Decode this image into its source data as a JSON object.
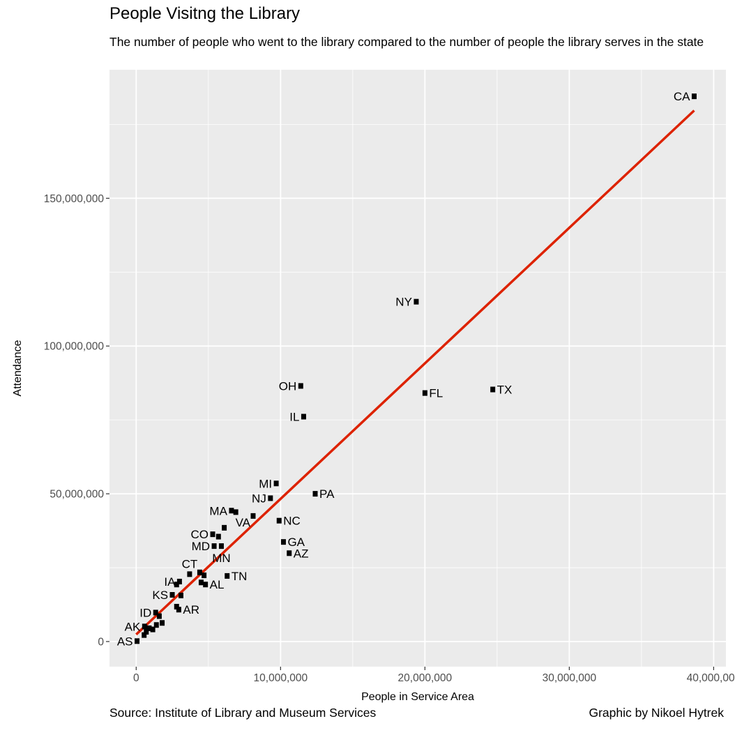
{
  "title": "People Visitng the Library",
  "subtitle": "The number of people who went to the library compared to the number of people the library serves  in the state",
  "caption_left": "Source: Institute of Library and Museum Services",
  "caption_right": "Graphic by Nikoel Hytrek",
  "colors": {
    "panel": "#ebebeb",
    "grid": "#ffffff",
    "point": "#000000",
    "fit_line": "#dd2200"
  },
  "chart_data": {
    "type": "scatter",
    "xlabel": "People in Service Area",
    "ylabel": "Attendance",
    "xlim": [
      -1850000,
      40850000
    ],
    "ylim": [
      -8500000,
      193500000
    ],
    "x_ticks": [
      0,
      10000000,
      20000000,
      30000000,
      40000000
    ],
    "x_tick_labels": [
      "0",
      "10,000,000",
      "20,000,000",
      "30,000,000",
      "40,000,000"
    ],
    "y_ticks": [
      0,
      50000000,
      100000000,
      150000000
    ],
    "y_tick_labels": [
      "0",
      "50,000,000",
      "100,000,000",
      "150,000,000"
    ],
    "grid": true,
    "points": [
      {
        "x": 38650000,
        "y": 184500000,
        "label": "CA",
        "label_side": "left"
      },
      {
        "x": 19400000,
        "y": 115000000,
        "label": "NY",
        "label_side": "left"
      },
      {
        "x": 24700000,
        "y": 85300000,
        "label": "TX",
        "label_side": "right"
      },
      {
        "x": 20000000,
        "y": 84100000,
        "label": "FL",
        "label_side": "right"
      },
      {
        "x": 11400000,
        "y": 86500000,
        "label": "OH",
        "label_side": "left"
      },
      {
        "x": 11600000,
        "y": 76100000,
        "label": "IL",
        "label_side": "left"
      },
      {
        "x": 12400000,
        "y": 50000000,
        "label": "PA",
        "label_side": "right"
      },
      {
        "x": 9700000,
        "y": 53500000,
        "label": "MI",
        "label_side": "left"
      },
      {
        "x": 9300000,
        "y": 48500000,
        "label": "NJ",
        "label_side": "left"
      },
      {
        "x": 9900000,
        "y": 40900000,
        "label": "NC",
        "label_side": "right"
      },
      {
        "x": 10200000,
        "y": 33700000,
        "label": "GA",
        "label_side": "right"
      },
      {
        "x": 10600000,
        "y": 29900000,
        "label": "AZ",
        "label_side": "right"
      },
      {
        "x": 8100000,
        "y": 42500000,
        "label": "VA",
        "label_side": "below-left"
      },
      {
        "x": 6600000,
        "y": 44300000,
        "label": "MA",
        "label_side": "left"
      },
      {
        "x": 6900000,
        "y": 43800000,
        "label": null
      },
      {
        "x": 6100000,
        "y": 38500000,
        "label": null
      },
      {
        "x": 5300000,
        "y": 36300000,
        "label": "CO",
        "label_side": "left"
      },
      {
        "x": 5700000,
        "y": 35500000,
        "label": null
      },
      {
        "x": 5400000,
        "y": 32300000,
        "label": "MD",
        "label_side": "left"
      },
      {
        "x": 5900000,
        "y": 32300000,
        "label": "MN",
        "label_side": "below"
      },
      {
        "x": 6300000,
        "y": 22200000,
        "label": "TN",
        "label_side": "right"
      },
      {
        "x": 3700000,
        "y": 22800000,
        "label": "CT",
        "label_side": "above"
      },
      {
        "x": 4400000,
        "y": 23400000,
        "label": null
      },
      {
        "x": 4700000,
        "y": 22400000,
        "label": null
      },
      {
        "x": 4500000,
        "y": 20000000,
        "label": null
      },
      {
        "x": 4800000,
        "y": 19300000,
        "label": "AL",
        "label_side": "right"
      },
      {
        "x": 3000000,
        "y": 20300000,
        "label": "IA",
        "label_side": "left"
      },
      {
        "x": 2800000,
        "y": 19300000,
        "label": null
      },
      {
        "x": 2500000,
        "y": 15800000,
        "label": "KS",
        "label_side": "left"
      },
      {
        "x": 3100000,
        "y": 15600000,
        "label": null
      },
      {
        "x": 2800000,
        "y": 11800000,
        "label": null
      },
      {
        "x": 2950000,
        "y": 10800000,
        "label": "AR",
        "label_side": "right"
      },
      {
        "x": 1350000,
        "y": 9800000,
        "label": "ID",
        "label_side": "left"
      },
      {
        "x": 1600000,
        "y": 8600000,
        "label": null
      },
      {
        "x": 1800000,
        "y": 6300000,
        "label": null
      },
      {
        "x": 1400000,
        "y": 5600000,
        "label": null
      },
      {
        "x": 1150000,
        "y": 4100000,
        "label": null
      },
      {
        "x": 900000,
        "y": 4500000,
        "label": null
      },
      {
        "x": 700000,
        "y": 3300000,
        "label": null
      },
      {
        "x": 550000,
        "y": 2200000,
        "label": null
      },
      {
        "x": 580000,
        "y": 5100000,
        "label": "AK",
        "label_side": "left"
      },
      {
        "x": 60000,
        "y": 150000,
        "label": "AS",
        "label_side": "left"
      }
    ],
    "fit_line": {
      "x": [
        0,
        38650000
      ],
      "y": [
        2400000,
        179700000
      ]
    }
  }
}
